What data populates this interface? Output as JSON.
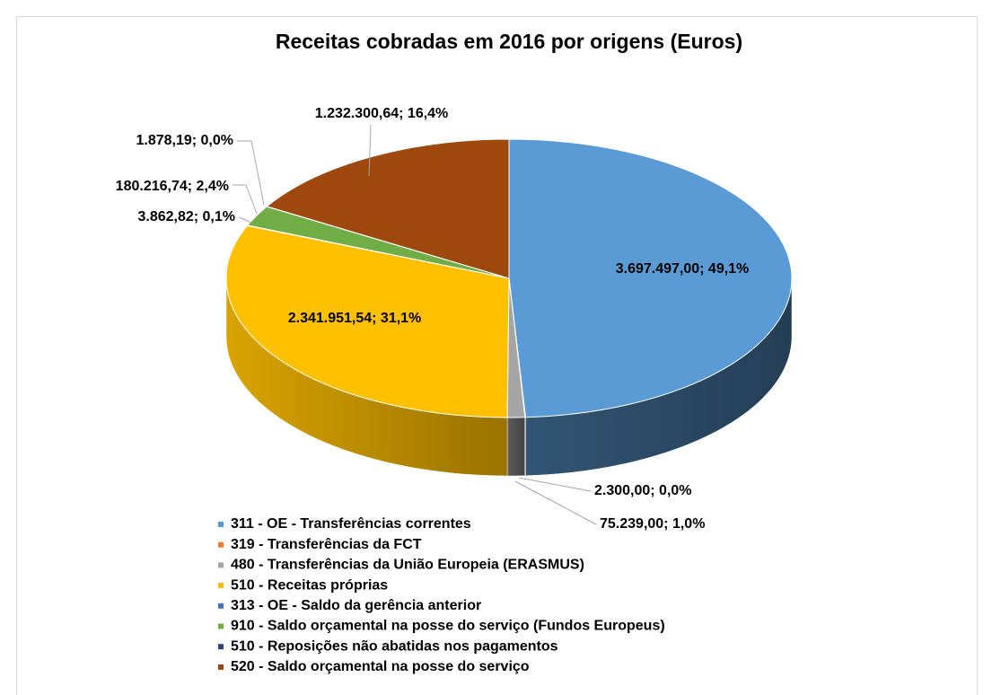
{
  "chart_data": {
    "type": "pie",
    "title": "Receitas cobradas em 2016 por origens (Euros)",
    "categories": [
      "311 - OE - Transferências correntes",
      "319 - Transferências da FCT",
      "480 - Transferências da União Europeia (ERASMUS)",
      "510 - Receitas próprias",
      "313 - OE - Saldo da gerência anterior",
      "910 - Saldo orçamental na posse do serviço (Fundos Europeus)",
      "510 - Reposições não abatidas nos pagamentos",
      "520 - Saldo orçamental na posse do serviço"
    ],
    "values": [
      3697497.0,
      2300.0,
      75239.0,
      2341951.54,
      3862.82,
      180216.74,
      1878.19,
      1232300.64
    ],
    "value_labels": [
      "3.697.497,00; 49,1%",
      "2.300,00; 0,0%",
      "75.239,00; 1,0%",
      "2.341.951,54; 31,1%",
      "3.862,82; 0,1%",
      "180.216,74; 2,4%",
      "1.878,19; 0,0%",
      "1.232.300,64; 16,4%"
    ],
    "colors": [
      "#5b9bd5",
      "#ed7d31",
      "#a5a5a5",
      "#ffc000",
      "#4472c4",
      "#70ad47",
      "#264478",
      "#9e480e"
    ],
    "legend": "bottom"
  }
}
